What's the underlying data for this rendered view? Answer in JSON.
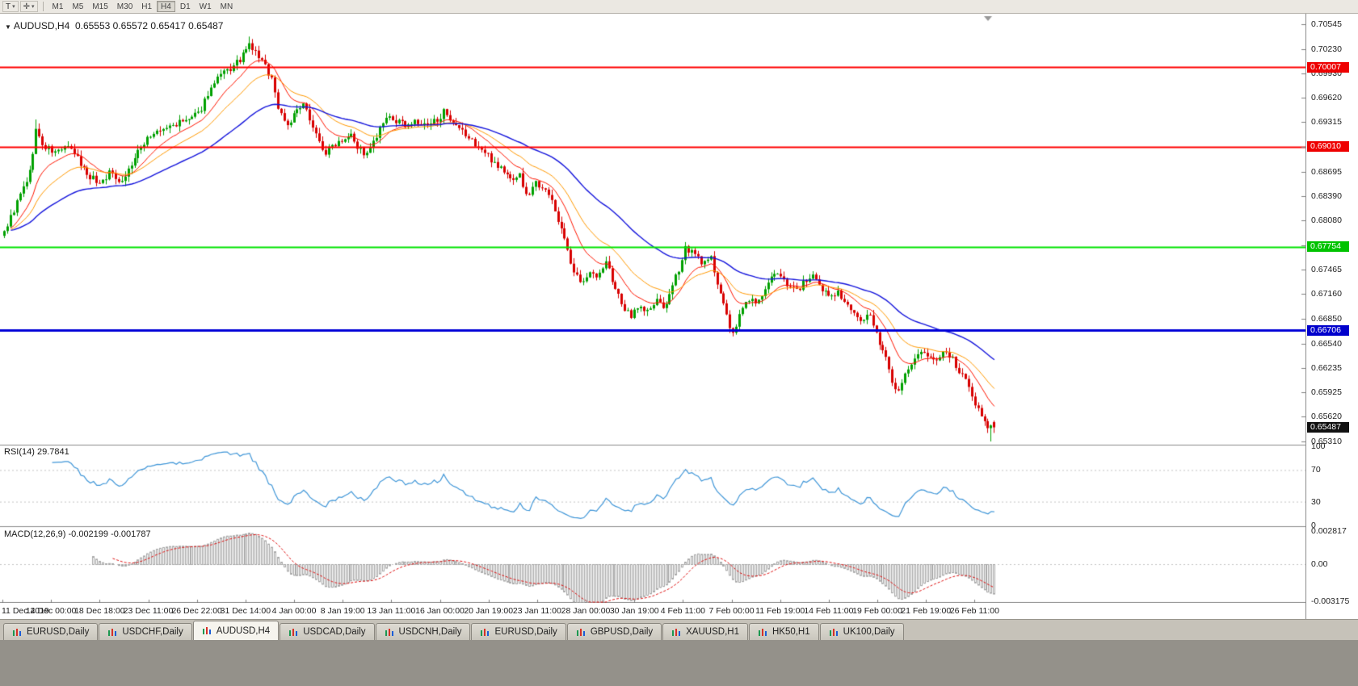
{
  "toolbar": {
    "templates_button": "T",
    "caret": "▾",
    "crosshair_button": "✛",
    "timeframes": [
      "M1",
      "M5",
      "M15",
      "M30",
      "H1",
      "H4",
      "D1",
      "W1",
      "MN"
    ],
    "active_timeframe": "H4"
  },
  "chart": {
    "title": "AUDUSD,H4",
    "ohlc_text": "0.65553 0.65572 0.65417 0.65487"
  },
  "price_scale": {
    "labels": [
      "0.70545",
      "0.70230",
      "0.69930",
      "0.69620",
      "0.69315",
      "0.69010",
      "0.68695",
      "0.68390",
      "0.68080",
      "0.67770",
      "0.67465",
      "0.67160",
      "0.66850",
      "0.66540",
      "0.66235",
      "0.65925",
      "0.65620",
      "0.65310"
    ],
    "badges": [
      {
        "value": "0.70007",
        "price": 0.70007,
        "color": "#ee0000"
      },
      {
        "value": "0.69010",
        "price": 0.6901,
        "color": "#ee0000"
      },
      {
        "value": "0.67754",
        "price": 0.67754,
        "color": "#00c300"
      },
      {
        "value": "0.66706",
        "price": 0.66706,
        "color": "#0000cc"
      },
      {
        "value": "0.65487",
        "price": 0.65487,
        "color": "#111111"
      }
    ]
  },
  "rsi": {
    "label": "RSI(14)",
    "value": "29.7841",
    "levels": [
      "100",
      "70",
      "30",
      "0"
    ],
    "line_color": "#3f96d8"
  },
  "macd": {
    "label": "MACD(12,26,9)",
    "values": "-0.002199 -0.001787",
    "scale": [
      "0.002817",
      "0.00",
      "-0.003175"
    ],
    "histogram_color": "#a8a8a8",
    "signal_color": "#e01010"
  },
  "x_axis": {
    "labels": [
      "11 Dec 2019",
      "14 Dec 00:00",
      "18 Dec 18:00",
      "23 Dec 11:00",
      "26 Dec 22:00",
      "31 Dec 14:00",
      "4 Jan 00:00",
      "8 Jan 19:00",
      "13 Jan 11:00",
      "16 Jan 00:00",
      "20 Jan 19:00",
      "23 Jan 11:00",
      "28 Jan 00:00",
      "30 Jan 19:00",
      "4 Feb 11:00",
      "7 Feb 00:00",
      "11 Feb 19:00",
      "14 Feb 11:00",
      "19 Feb 00:00",
      "21 Feb 19:00",
      "26 Feb 11:00"
    ]
  },
  "tabs": {
    "active_index": 2,
    "items": [
      {
        "label": "EURUSD,Daily"
      },
      {
        "label": "USDCHF,Daily"
      },
      {
        "label": "AUDUSD,H4"
      },
      {
        "label": "USDCAD,Daily"
      },
      {
        "label": "USDCNH,Daily"
      },
      {
        "label": "EURUSD,Daily"
      },
      {
        "label": "GBPUSD,Daily"
      },
      {
        "label": "XAUUSD,H1"
      },
      {
        "label": "HK50,H1"
      },
      {
        "label": "UK100,Daily"
      }
    ]
  },
  "chart_data": {
    "type": "candlestick",
    "symbol": "AUDUSD",
    "timeframe": "H4",
    "ylim": [
      0.6531,
      0.70545
    ],
    "candle_count": 312,
    "current_price": 0.65487,
    "last_bar": {
      "open": 0.65553,
      "high": 0.65572,
      "low": 0.65417,
      "close": 0.65487
    },
    "support_resistance_lines": [
      {
        "price": 0.70007,
        "color": "#ff0000",
        "width": 2
      },
      {
        "price": 0.6901,
        "color": "#ff0000",
        "width": 2
      },
      {
        "price": 0.67754,
        "color": "#00e400",
        "width": 2
      },
      {
        "price": 0.66706,
        "color": "#0000d8",
        "width": 3
      }
    ],
    "moving_averages": [
      {
        "type": "ema",
        "period": 12,
        "color": "#ff1500",
        "width": 1
      },
      {
        "type": "ema",
        "period": 24,
        "color": "#ff9900",
        "width": 1
      },
      {
        "type": "ema",
        "period": 55,
        "color": "#1414dc",
        "width": 1.4
      }
    ],
    "indicators": [
      {
        "name": "RSI",
        "period": 14,
        "current": 29.7841,
        "levels": [
          70,
          30
        ]
      },
      {
        "name": "MACD",
        "fast": 12,
        "slow": 26,
        "signal": 9,
        "current_macd": -0.002199,
        "current_signal": -0.001787,
        "scale_max": 0.002817,
        "scale_min": -0.003175
      }
    ],
    "up_color": "#00a000",
    "down_color": "#d80000",
    "close_anchors": [
      [
        0,
        0.6795
      ],
      [
        2,
        0.6812
      ],
      [
        5,
        0.684
      ],
      [
        8,
        0.6868
      ],
      [
        10,
        0.6922
      ],
      [
        12,
        0.6902
      ],
      [
        16,
        0.6893
      ],
      [
        19,
        0.6901
      ],
      [
        22,
        0.6892
      ],
      [
        26,
        0.6867
      ],
      [
        30,
        0.6855
      ],
      [
        33,
        0.6868
      ],
      [
        37,
        0.6858
      ],
      [
        41,
        0.6886
      ],
      [
        45,
        0.6913
      ],
      [
        49,
        0.692
      ],
      [
        53,
        0.6928
      ],
      [
        57,
        0.6933
      ],
      [
        61,
        0.6941
      ],
      [
        64,
        0.6968
      ],
      [
        68,
        0.699
      ],
      [
        72,
        0.7001
      ],
      [
        75,
        0.7015
      ],
      [
        77,
        0.7028
      ],
      [
        79,
        0.7019
      ],
      [
        81,
        0.7008
      ],
      [
        84,
        0.6987
      ],
      [
        86,
        0.695
      ],
      [
        89,
        0.6928
      ],
      [
        92,
        0.6946
      ],
      [
        94,
        0.6951
      ],
      [
        96,
        0.6938
      ],
      [
        99,
        0.6906
      ],
      [
        101,
        0.6893
      ],
      [
        104,
        0.6906
      ],
      [
        107,
        0.6913
      ],
      [
        109,
        0.692
      ],
      [
        111,
        0.69
      ],
      [
        114,
        0.689
      ],
      [
        117,
        0.6913
      ],
      [
        119,
        0.693
      ],
      [
        121,
        0.6936
      ],
      [
        125,
        0.6929
      ],
      [
        129,
        0.6931
      ],
      [
        133,
        0.6926
      ],
      [
        136,
        0.6936
      ],
      [
        138,
        0.6944
      ],
      [
        140,
        0.693
      ],
      [
        144,
        0.6919
      ],
      [
        148,
        0.6904
      ],
      [
        152,
        0.6889
      ],
      [
        156,
        0.6874
      ],
      [
        159,
        0.686
      ],
      [
        162,
        0.6866
      ],
      [
        164,
        0.6838
      ],
      [
        167,
        0.6856
      ],
      [
        170,
        0.685
      ],
      [
        173,
        0.682
      ],
      [
        176,
        0.6788
      ],
      [
        178,
        0.675
      ],
      [
        181,
        0.673
      ],
      [
        184,
        0.6746
      ],
      [
        186,
        0.6735
      ],
      [
        189,
        0.6756
      ],
      [
        192,
        0.6724
      ],
      [
        194,
        0.67
      ],
      [
        197,
        0.669
      ],
      [
        199,
        0.6701
      ],
      [
        202,
        0.6694
      ],
      [
        205,
        0.6706
      ],
      [
        207,
        0.67
      ],
      [
        209,
        0.6712
      ],
      [
        212,
        0.6748
      ],
      [
        214,
        0.6775
      ],
      [
        217,
        0.6764
      ],
      [
        220,
        0.6754
      ],
      [
        222,
        0.676
      ],
      [
        225,
        0.6718
      ],
      [
        227,
        0.6688
      ],
      [
        229,
        0.6663
      ],
      [
        231,
        0.669
      ],
      [
        234,
        0.6711
      ],
      [
        236,
        0.6704
      ],
      [
        239,
        0.672
      ],
      [
        241,
        0.6736
      ],
      [
        244,
        0.6741
      ],
      [
        246,
        0.673
      ],
      [
        249,
        0.672
      ],
      [
        251,
        0.6731
      ],
      [
        254,
        0.6736
      ],
      [
        256,
        0.6724
      ],
      [
        259,
        0.6714
      ],
      [
        262,
        0.672
      ],
      [
        264,
        0.6704
      ],
      [
        267,
        0.669
      ],
      [
        269,
        0.6684
      ],
      [
        272,
        0.6691
      ],
      [
        274,
        0.6664
      ],
      [
        277,
        0.6638
      ],
      [
        279,
        0.6608
      ],
      [
        281,
        0.6593
      ],
      [
        283,
        0.6616
      ],
      [
        285,
        0.6626
      ],
      [
        288,
        0.6646
      ],
      [
        290,
        0.664
      ],
      [
        293,
        0.663
      ],
      [
        295,
        0.6641
      ],
      [
        298,
        0.6634
      ],
      [
        300,
        0.6619
      ],
      [
        303,
        0.66
      ],
      [
        305,
        0.658
      ],
      [
        307,
        0.656
      ],
      [
        309,
        0.6552
      ],
      [
        311,
        0.65487
      ]
    ]
  }
}
